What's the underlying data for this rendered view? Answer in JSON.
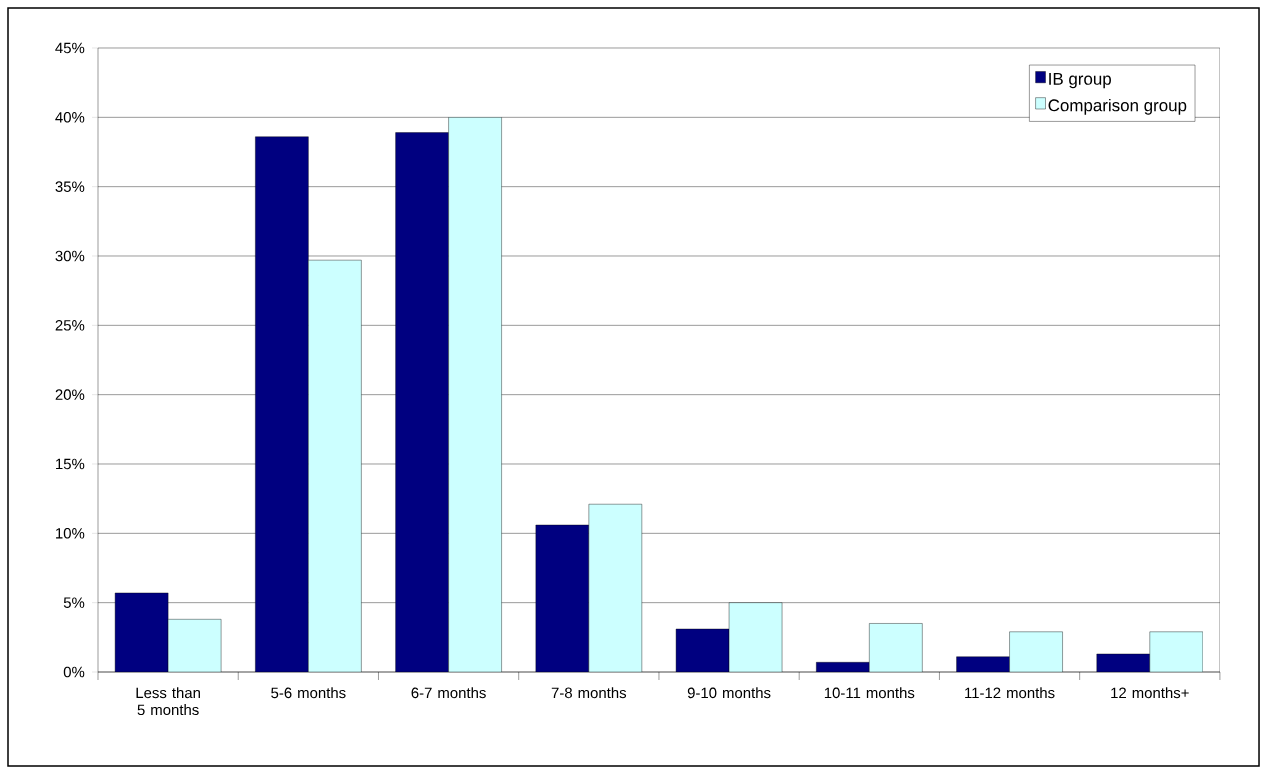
{
  "chart_data": {
    "type": "bar",
    "categories": [
      "Less than 5 months",
      "5-6 months",
      "6-7 months",
      "7-8 months",
      "9-10 months",
      "10-11 months",
      "11-12 months",
      "12 months+"
    ],
    "series": [
      {
        "name": "IB group",
        "color": "#000080",
        "values": [
          5.7,
          38.6,
          38.9,
          10.6,
          3.1,
          0.7,
          1.1,
          1.3
        ]
      },
      {
        "name": "Comparison group",
        "color": "#ccffff",
        "values": [
          3.8,
          29.7,
          40.0,
          12.1,
          5.0,
          3.5,
          2.9,
          2.9
        ]
      }
    ],
    "ylim": [
      0,
      45
    ],
    "yticks": [
      {
        "value": 0,
        "label": "0%"
      },
      {
        "value": 5,
        "label": "5%"
      },
      {
        "value": 10,
        "label": "10%"
      },
      {
        "value": 15,
        "label": "15%"
      },
      {
        "value": 20,
        "label": "20%"
      },
      {
        "value": 25,
        "label": "25%"
      },
      {
        "value": 30,
        "label": "30%"
      },
      {
        "value": 35,
        "label": "35%"
      },
      {
        "value": 40,
        "label": "40%"
      },
      {
        "value": 45,
        "label": "45%"
      }
    ],
    "grid": "y",
    "legend": "top right"
  }
}
